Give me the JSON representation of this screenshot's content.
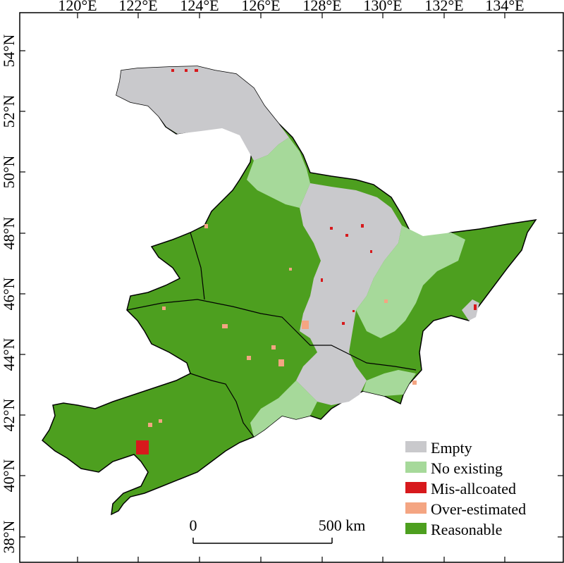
{
  "map": {
    "longitude_labels": [
      "120°E",
      "122°E",
      "124°E",
      "126°E",
      "128°E",
      "130°E",
      "132°E",
      "134°E"
    ],
    "latitude_labels": [
      "54°N",
      "52°N",
      "50°N",
      "48°N",
      "46°N",
      "44°N",
      "42°N",
      "40°N",
      "38°N"
    ]
  },
  "legend": {
    "items": [
      {
        "label": "Empty",
        "color": "#c9c9cc"
      },
      {
        "label": "No existing",
        "color": "#a6d99a"
      },
      {
        "label": "Mis-allcoated",
        "color": "#d7191c"
      },
      {
        "label": "Over-estimated",
        "color": "#f4a582"
      },
      {
        "label": "Reasonable",
        "color": "#4d9f1f"
      }
    ]
  },
  "scale_bar": {
    "start_label": "0",
    "end_label": "500 km"
  },
  "colors": {
    "empty": "#c9c9cc",
    "no_existing": "#a6d99a",
    "mis_allocated": "#d7191c",
    "over_estimated": "#f4a582",
    "reasonable": "#4d9f1f",
    "border": "#000000"
  }
}
